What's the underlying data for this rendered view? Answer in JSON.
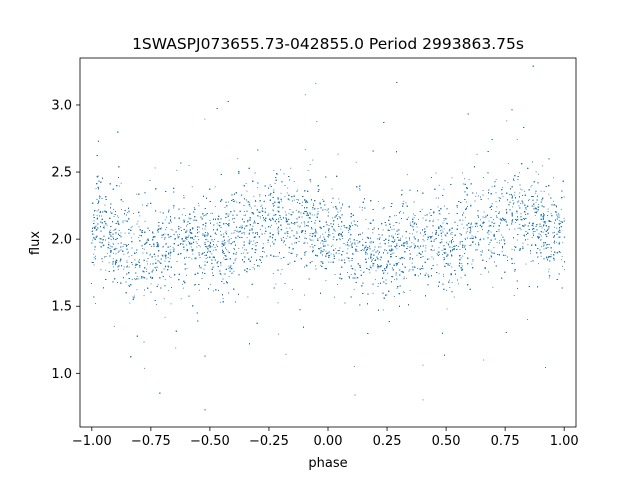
{
  "chart_data": {
    "type": "scatter",
    "title": "1SWASPJ073655.73-042855.0 Period 2993863.75s",
    "xlabel": "phase",
    "ylabel": "flux",
    "xlim": [
      -1.05,
      1.05
    ],
    "ylim": [
      0.6,
      3.35
    ],
    "x_ticks": [
      -1.0,
      -0.75,
      -0.5,
      -0.25,
      0.0,
      0.25,
      0.5,
      0.75,
      1.0
    ],
    "x_tick_labels": [
      "−1.00",
      "−0.75",
      "−0.50",
      "−0.25",
      "0.00",
      "0.25",
      "0.50",
      "0.75",
      "1.00"
    ],
    "y_ticks": [
      1.0,
      1.5,
      2.0,
      2.5,
      3.0
    ],
    "y_tick_labels": [
      "1.0",
      "1.5",
      "2.0",
      "2.5",
      "3.0"
    ],
    "grid": false,
    "marker_color": "#1f77b4",
    "series": [
      {
        "points": [
          [
            -0.98,
            2.3
          ],
          [
            -0.95,
            2.1
          ],
          [
            -0.92,
            2.0
          ],
          [
            -0.9,
            2.0
          ],
          [
            -0.87,
            1.95
          ],
          [
            -0.85,
            1.9
          ],
          [
            -0.82,
            1.85
          ],
          [
            -0.8,
            1.85
          ],
          [
            -0.77,
            1.9
          ],
          [
            -0.75,
            1.95
          ],
          [
            -0.72,
            1.95
          ],
          [
            -0.7,
            1.95
          ],
          [
            -0.67,
            1.95
          ],
          [
            -0.65,
            2.0
          ],
          [
            -0.62,
            2.0
          ],
          [
            -0.6,
            2.0
          ],
          [
            -0.57,
            2.0
          ],
          [
            -0.55,
            2.0
          ],
          [
            -0.52,
            2.0
          ],
          [
            -0.5,
            1.98
          ],
          [
            -0.47,
            1.95
          ],
          [
            -0.45,
            1.95
          ],
          [
            -0.42,
            2.0
          ],
          [
            -0.4,
            2.05
          ],
          [
            -0.37,
            2.1
          ],
          [
            -0.35,
            2.1
          ],
          [
            -0.32,
            2.1
          ],
          [
            -0.3,
            2.12
          ],
          [
            -0.27,
            2.15
          ],
          [
            -0.25,
            2.15
          ],
          [
            -0.22,
            2.15
          ],
          [
            -0.2,
            2.15
          ],
          [
            -0.17,
            2.15
          ],
          [
            -0.15,
            2.12
          ],
          [
            -0.12,
            2.1
          ],
          [
            -0.1,
            2.1
          ],
          [
            -0.07,
            2.08
          ],
          [
            -0.05,
            2.05
          ],
          [
            -0.02,
            2.02
          ],
          [
            0.0,
            2.02
          ],
          [
            0.02,
            2.0
          ],
          [
            0.05,
            2.0
          ],
          [
            0.08,
            1.98
          ],
          [
            0.1,
            1.95
          ],
          [
            0.12,
            1.95
          ],
          [
            0.15,
            1.92
          ],
          [
            0.18,
            1.88
          ],
          [
            0.2,
            1.85
          ],
          [
            0.22,
            1.85
          ],
          [
            0.25,
            1.9
          ],
          [
            0.28,
            1.95
          ],
          [
            0.3,
            1.95
          ],
          [
            0.32,
            1.95
          ],
          [
            0.35,
            1.95
          ],
          [
            0.38,
            2.0
          ],
          [
            0.4,
            2.0
          ],
          [
            0.42,
            2.0
          ],
          [
            0.45,
            2.0
          ],
          [
            0.48,
            2.0
          ],
          [
            0.5,
            1.98
          ],
          [
            0.53,
            1.95
          ],
          [
            0.55,
            1.95
          ],
          [
            0.58,
            2.0
          ],
          [
            0.6,
            2.05
          ],
          [
            0.63,
            2.1
          ],
          [
            0.65,
            2.1
          ],
          [
            0.68,
            2.1
          ],
          [
            0.7,
            2.12
          ],
          [
            0.73,
            2.15
          ],
          [
            0.75,
            2.15
          ],
          [
            0.78,
            2.15
          ],
          [
            0.8,
            2.15
          ],
          [
            0.83,
            2.15
          ],
          [
            0.85,
            2.12
          ],
          [
            0.88,
            2.1
          ],
          [
            0.9,
            2.1
          ],
          [
            0.93,
            2.08
          ],
          [
            0.95,
            2.05
          ],
          [
            0.98,
            2.02
          ],
          [
            1.0,
            2.02
          ]
        ]
      }
    ]
  }
}
